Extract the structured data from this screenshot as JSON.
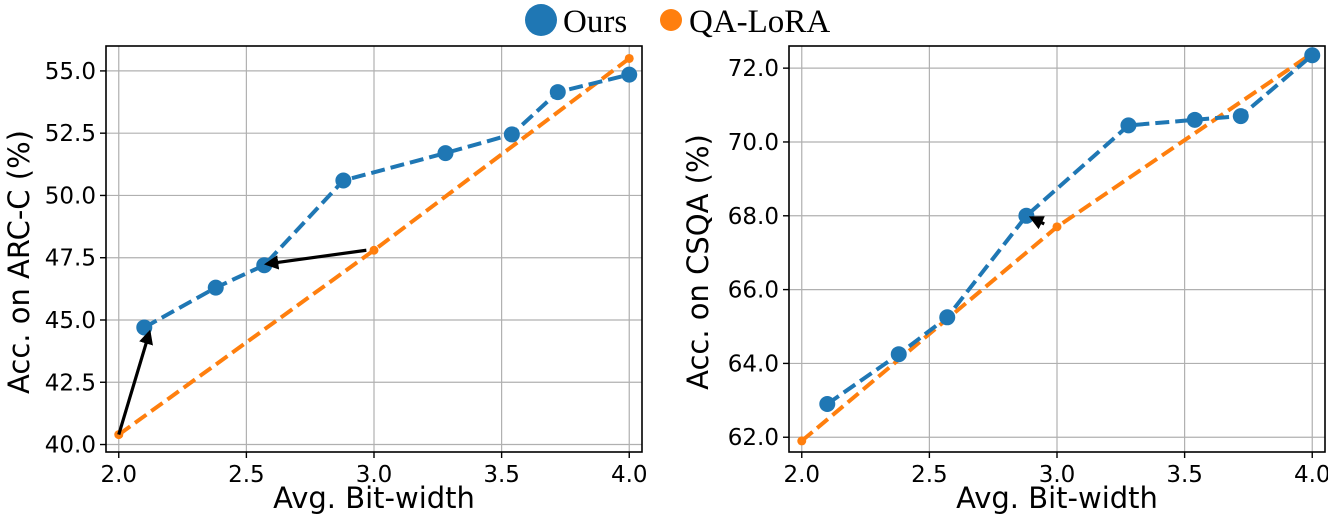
{
  "legend": [
    {
      "label": "Ours",
      "color": "#1f77b4"
    },
    {
      "label": "QA-LoRA",
      "color": "#ff7f0e"
    }
  ],
  "chart_data": [
    {
      "type": "line",
      "xlabel": "Avg. Bit-width",
      "ylabel": "Acc. on ARC-C (%)",
      "xlim": [
        1.95,
        4.05
      ],
      "ylim": [
        39.7,
        56.0
      ],
      "xticks": [
        2.0,
        2.5,
        3.0,
        3.5,
        4.0
      ],
      "xtick_labels": [
        "2.0",
        "2.5",
        "3.0",
        "3.5",
        "4.0"
      ],
      "yticks": [
        40.0,
        42.5,
        45.0,
        47.5,
        50.0,
        52.5,
        55.0
      ],
      "ytick_labels": [
        "40.0",
        "42.5",
        "45.0",
        "47.5",
        "50.0",
        "52.5",
        "55.0"
      ],
      "grid": true,
      "series": [
        {
          "name": "Ours",
          "color": "#1f77b4",
          "x": [
            2.1,
            2.38,
            2.57,
            2.88,
            3.28,
            3.54,
            3.72,
            4.0
          ],
          "y": [
            44.7,
            46.3,
            47.2,
            50.6,
            51.7,
            52.45,
            54.15,
            54.85
          ]
        },
        {
          "name": "QA-LoRA",
          "color": "#ff7f0e",
          "x": [
            2.0,
            3.0,
            4.0
          ],
          "y": [
            40.4,
            47.8,
            55.5
          ]
        }
      ],
      "arrows": [
        {
          "from": [
            2.0,
            40.4
          ],
          "to": [
            2.12,
            44.5
          ]
        },
        {
          "from": [
            2.97,
            47.8
          ],
          "to": [
            2.58,
            47.25
          ]
        }
      ]
    },
    {
      "type": "line",
      "xlabel": "Avg. Bit-width",
      "ylabel": "Acc. on CSQA (%)",
      "xlim": [
        1.95,
        4.05
      ],
      "ylim": [
        61.6,
        72.6
      ],
      "xticks": [
        2.0,
        2.5,
        3.0,
        3.5,
        4.0
      ],
      "xtick_labels": [
        "2.0",
        "2.5",
        "3.0",
        "3.5",
        "4.0"
      ],
      "yticks": [
        62.0,
        64.0,
        66.0,
        68.0,
        70.0,
        72.0
      ],
      "ytick_labels": [
        "62.0",
        "64.0",
        "66.0",
        "68.0",
        "70.0",
        "72.0"
      ],
      "grid": true,
      "series": [
        {
          "name": "Ours",
          "color": "#1f77b4",
          "x": [
            2.1,
            2.38,
            2.57,
            2.88,
            3.28,
            3.54,
            3.72,
            4.0
          ],
          "y": [
            62.9,
            64.25,
            65.25,
            68.0,
            70.45,
            70.6,
            70.7,
            72.35
          ]
        },
        {
          "name": "QA-LoRA",
          "color": "#ff7f0e",
          "x": [
            2.0,
            3.0,
            4.0
          ],
          "y": [
            61.9,
            67.7,
            72.4
          ]
        }
      ],
      "arrows": [
        {
          "from": [
            2.95,
            67.78
          ],
          "to": [
            2.9,
            67.95
          ]
        }
      ]
    }
  ]
}
